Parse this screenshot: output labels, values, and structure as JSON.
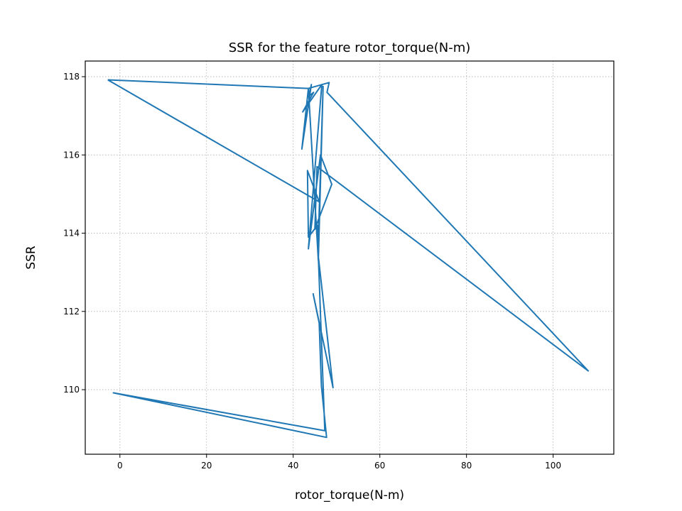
{
  "chart_data": {
    "type": "line",
    "title": "SSR for the feature rotor_torque(N-m)",
    "xlabel": "rotor_torque(N-m)",
    "ylabel": "SSR",
    "xlim": [
      -8,
      114
    ],
    "ylim": [
      108.35,
      118.4
    ],
    "xticks": [
      0,
      20,
      40,
      60,
      80,
      100
    ],
    "yticks": [
      110,
      112,
      114,
      116,
      118
    ],
    "grid": true,
    "series": [
      {
        "color": "#1f77b4",
        "x": [
          -2.8,
          43.5,
          48.3,
          47.8,
          108.1,
          45.5,
          45.0,
          48.9,
          46.3,
          43.5,
          46.6,
          42.2,
          44.7,
          43.6,
          44.2,
          42.0,
          43.5,
          45.8,
          46.9,
          45.7,
          49.2,
          44.6,
          46.0,
          46.5,
          47.7,
          -1.5,
          47.3,
          45.7,
          45.6,
          43.5,
          43.3,
          46.0,
          -2.8
        ],
        "y": [
          117.92,
          117.7,
          117.85,
          117.6,
          110.48,
          115.7,
          114.1,
          115.25,
          116.0,
          113.6,
          117.8,
          117.1,
          117.6,
          117.5,
          117.8,
          116.15,
          117.7,
          113.3,
          117.75,
          113.5,
          110.05,
          112.45,
          111.7,
          110.1,
          108.78,
          109.92,
          108.95,
          113.7,
          114.2,
          113.9,
          115.6,
          114.8,
          117.92
        ]
      }
    ]
  }
}
